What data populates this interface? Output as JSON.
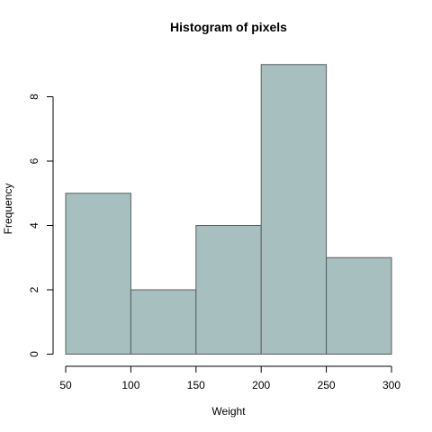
{
  "chart_data": {
    "type": "bar",
    "title": "Histogram of pixels",
    "xlabel": "Weight",
    "ylabel": "Frequency",
    "bins": [
      [
        50,
        100
      ],
      [
        100,
        150
      ],
      [
        150,
        200
      ],
      [
        200,
        250
      ],
      [
        250,
        300
      ]
    ],
    "values": [
      5,
      2,
      4,
      9,
      3
    ],
    "xlim": [
      50,
      300
    ],
    "ylim": [
      0,
      9
    ],
    "x_ticks": [
      50,
      100,
      150,
      200,
      250,
      300
    ],
    "y_ticks": [
      0,
      2,
      4,
      6,
      8
    ],
    "bar_color": "#a7bfbf",
    "bar_border_color": "#5a5f5f",
    "grid": false,
    "legend": "none"
  }
}
